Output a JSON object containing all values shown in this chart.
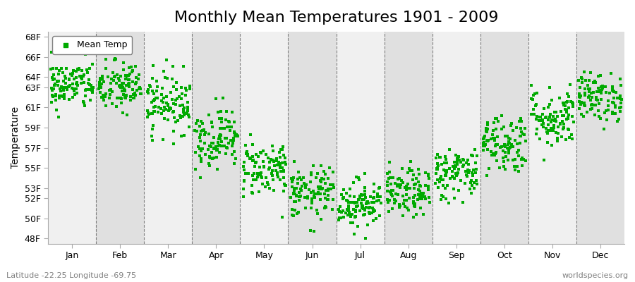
{
  "title": "Monthly Mean Temperatures 1901 - 2009",
  "ylabel": "Temperature",
  "yticks": [
    48,
    50,
    52,
    53,
    55,
    57,
    59,
    61,
    63,
    64,
    66,
    68
  ],
  "ytick_labels": [
    "48F",
    "50F",
    "52F",
    "53F",
    "55F",
    "57F",
    "59F",
    "61F",
    "63F",
    "64F",
    "66F",
    "68F"
  ],
  "ylim": [
    47.5,
    68.5
  ],
  "months": [
    "Jan",
    "Feb",
    "Mar",
    "Apr",
    "May",
    "Jun",
    "Jul",
    "Aug",
    "Sep",
    "Oct",
    "Nov",
    "Dec"
  ],
  "dot_color": "#00aa00",
  "bg_color_light": "#f0f0f0",
  "bg_color_dark": "#e0e0e0",
  "grid_color": "#555555",
  "title_fontsize": 16,
  "axis_fontsize": 10,
  "label_fontsize": 9,
  "subtitle_left": "Latitude -22.25 Longitude -69.75",
  "subtitle_right": "worldspecies.org",
  "n_years": 109,
  "mean_temps_by_month": [
    63.2,
    63.0,
    61.5,
    58.0,
    55.0,
    52.5,
    51.5,
    52.5,
    54.5,
    57.5,
    60.0,
    62.0
  ],
  "std_temps_by_month": [
    1.2,
    1.3,
    1.5,
    1.5,
    1.4,
    1.3,
    1.2,
    1.2,
    1.3,
    1.5,
    1.5,
    1.2
  ]
}
